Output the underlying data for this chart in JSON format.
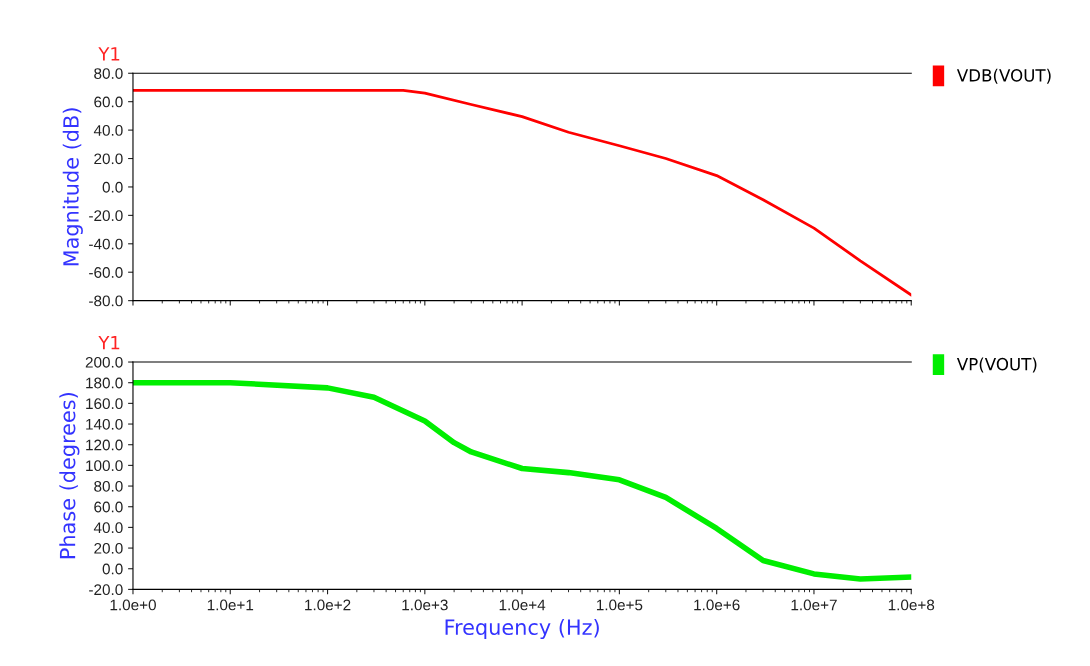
{
  "chart_data": [
    {
      "type": "line",
      "ylabel": "Magnitude (dB)",
      "annotations": [
        "Y1"
      ],
      "log": "x",
      "tick_labels": "y",
      "legend": "right",
      "grid": false,
      "marker": "none",
      "line_style": "solid",
      "x": [
        1,
        10,
        100,
        300,
        600,
        1000,
        3000,
        10000,
        30000,
        100000,
        300000,
        1000000,
        3000000,
        10000000,
        30000000,
        100000000
      ],
      "series": [
        {
          "name": "VDB(VOUT)",
          "color": "#ff0000",
          "values": [
            68,
            68,
            68,
            68,
            68,
            66,
            58,
            49.5,
            38.5,
            29,
            20,
            8,
            -9,
            -29,
            -52,
            -76
          ]
        }
      ],
      "xlim": [
        1,
        100000000
      ],
      "xticks": [
        {
          "value": 1,
          "label": null
        },
        {
          "value": 10,
          "label": null
        },
        {
          "value": 100,
          "label": null
        },
        {
          "value": 1000,
          "label": null
        },
        {
          "value": 10000,
          "label": null
        },
        {
          "value": 100000,
          "label": null
        },
        {
          "value": 1000000,
          "label": null
        },
        {
          "value": 10000000,
          "label": null
        },
        {
          "value": 100000000,
          "label": null
        }
      ],
      "ylim": [
        -80,
        80
      ],
      "yticks": [
        {
          "value": -80,
          "label": "-80.0"
        },
        {
          "value": -60,
          "label": "-60.0"
        },
        {
          "value": -40,
          "label": "-40.0"
        },
        {
          "value": -20,
          "label": "-20.0"
        },
        {
          "value": 0,
          "label": "0.0"
        },
        {
          "value": 20,
          "label": "20.0"
        },
        {
          "value": 40,
          "label": "40.0"
        },
        {
          "value": 60,
          "label": "60.0"
        },
        {
          "value": 80,
          "label": "80.0"
        }
      ]
    },
    {
      "type": "line",
      "ylabel": "Phase (degrees)",
      "xlabel": "Frequency (Hz)",
      "annotations": [
        "Y1"
      ],
      "log": "x",
      "legend": "right",
      "grid": false,
      "marker": "none",
      "line_style": "solid",
      "x": [
        1,
        10,
        100,
        300,
        1000,
        2000,
        3000,
        10000,
        30000,
        100000,
        300000,
        1000000,
        3000000,
        10000000,
        30000000,
        100000000
      ],
      "series": [
        {
          "name": "VP(VOUT)",
          "color": "#00ee00",
          "values": [
            180,
            180,
            175,
            166,
            143,
            122,
            113,
            97,
            93,
            86,
            69,
            39,
            8,
            -5,
            -10,
            -8
          ]
        }
      ],
      "xlim": [
        1,
        100000000
      ],
      "xticks": [
        {
          "value": 1,
          "label": "1.0e+0"
        },
        {
          "value": 10,
          "label": "1.0e+1"
        },
        {
          "value": 100,
          "label": "1.0e+2"
        },
        {
          "value": 1000,
          "label": "1.0e+3"
        },
        {
          "value": 10000,
          "label": "1.0e+4"
        },
        {
          "value": 100000,
          "label": "1.0e+5"
        },
        {
          "value": 1000000,
          "label": "1.0e+6"
        },
        {
          "value": 10000000,
          "label": "1.0e+7"
        },
        {
          "value": 100000000,
          "label": "1.0e+8"
        }
      ],
      "ylim": [
        -20,
        200
      ],
      "yticks": [
        {
          "value": -20,
          "label": "-20.0"
        },
        {
          "value": 0,
          "label": "0.0"
        },
        {
          "value": 20,
          "label": "20.0"
        },
        {
          "value": 40,
          "label": "40.0"
        },
        {
          "value": 60,
          "label": "60.0"
        },
        {
          "value": 80,
          "label": "80.0"
        },
        {
          "value": 100,
          "label": "100.0"
        },
        {
          "value": 120,
          "label": "120.0"
        },
        {
          "value": 140,
          "label": "140.0"
        },
        {
          "value": 160,
          "label": "160.0"
        },
        {
          "value": 180,
          "label": "180.0"
        },
        {
          "value": 200,
          "label": "200.0"
        }
      ]
    }
  ]
}
